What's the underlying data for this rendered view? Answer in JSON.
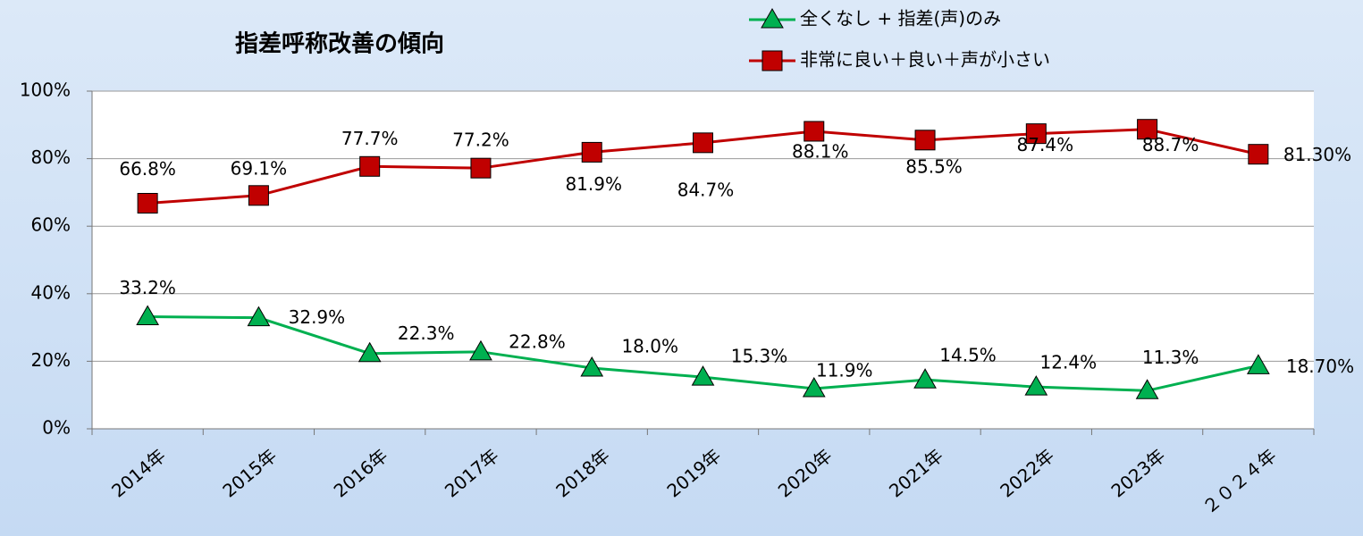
{
  "chart_data": {
    "type": "line",
    "title": "指差呼称改善の傾向",
    "categories": [
      "2014年",
      "2015年",
      "2016年",
      "2017年",
      "2018年",
      "2019年",
      "2020年",
      "2021年",
      "2022年",
      "2023年",
      "２０２４年"
    ],
    "series": [
      {
        "name": "全くなし + 指差(声)のみ",
        "color": "#00b050",
        "marker": "triangle",
        "values": [
          33.2,
          32.9,
          22.3,
          22.8,
          18.0,
          15.3,
          11.9,
          14.5,
          12.4,
          11.3,
          18.7
        ],
        "value_labels": [
          "33.2%",
          "32.9%",
          "22.3%",
          "22.8%",
          "18.0%",
          "15.3%",
          "11.9%",
          "14.5%",
          "12.4%",
          "11.3%",
          "18.70%"
        ]
      },
      {
        "name": "非常に良い＋良い＋声が小さい",
        "color": "#c00000",
        "marker": "square",
        "values": [
          66.8,
          69.1,
          77.7,
          77.2,
          81.9,
          84.7,
          88.1,
          85.5,
          87.4,
          88.7,
          81.3
        ],
        "value_labels": [
          "66.8%",
          "69.1%",
          "77.7%",
          "77.2%",
          "81.9%",
          "84.7%",
          "88.1%",
          "85.5%",
          "87.4%",
          "88.7%",
          "81.30%"
        ]
      }
    ],
    "ylim": [
      0,
      100
    ],
    "yticks": [
      {
        "value": 0,
        "label": "0%"
      },
      {
        "value": 20,
        "label": "20%"
      },
      {
        "value": 40,
        "label": "40%"
      },
      {
        "value": 60,
        "label": "60%"
      },
      {
        "value": 80,
        "label": "80%"
      },
      {
        "value": 100,
        "label": "100%"
      }
    ],
    "grid": true
  }
}
